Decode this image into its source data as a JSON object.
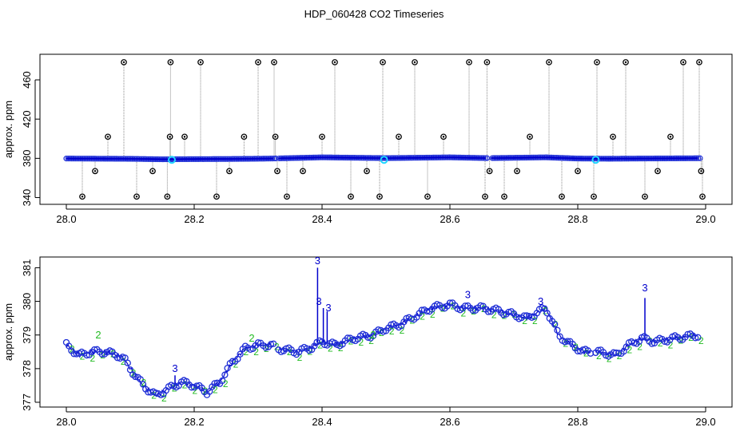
{
  "figure": {
    "title": "HDP_060428  CO2 Timeseries"
  },
  "colors": {
    "line_blue": "#0000cc",
    "marker_blue": "#1f2fd6",
    "cyan": "#1fd6ff",
    "green": "#22bb22",
    "gray": "#8a8a8a",
    "black": "#000000"
  },
  "chart_data": [
    {
      "type": "line",
      "panel": "top",
      "ylabel": "approx. ppm",
      "xlabel": "",
      "xlim": [
        28.0,
        29.0
      ],
      "ylim": [
        338,
        482
      ],
      "xticks": [
        28.0,
        28.2,
        28.4,
        28.6,
        28.8,
        29.0
      ],
      "xtick_labels": [
        "28.0",
        "28.2",
        "28.4",
        "28.6",
        "28.8",
        "29.0"
      ],
      "yticks": [
        340,
        380,
        420,
        460
      ],
      "ytick_labels": [
        "340",
        "380",
        "420",
        "460"
      ],
      "grid": false,
      "gaps": [
        [
          28.328,
          28.332
        ],
        [
          28.66,
          28.664
        ]
      ],
      "baseline": {
        "x": [
          28.0,
          28.1,
          28.15,
          28.2,
          28.25,
          28.3,
          28.33,
          28.4,
          28.5,
          28.6,
          28.66,
          28.75,
          28.8,
          28.85,
          28.9,
          28.99
        ],
        "y": [
          379.8,
          379.5,
          379.0,
          379.2,
          379.3,
          379.6,
          379.9,
          381.0,
          380.2,
          381.0,
          380.2,
          381.0,
          379.8,
          379.6,
          379.8,
          380.1
        ]
      },
      "spikes": {
        "x": [
          28.025,
          28.045,
          28.065,
          28.09,
          28.11,
          28.135,
          28.158,
          28.162,
          28.163,
          28.185,
          28.21,
          28.235,
          28.255,
          28.278,
          28.3,
          28.325,
          28.327,
          28.33,
          28.345,
          28.37,
          28.4,
          28.42,
          28.445,
          28.47,
          28.49,
          28.495,
          28.52,
          28.545,
          28.565,
          28.59,
          28.63,
          28.655,
          28.658,
          28.662,
          28.685,
          28.705,
          28.725,
          28.755,
          28.775,
          28.8,
          28.825,
          28.83,
          28.855,
          28.875,
          28.905,
          28.925,
          28.945,
          28.965,
          28.99,
          28.993,
          28.995
        ],
        "y": [
          341,
          367,
          402,
          478,
          341,
          367,
          341,
          402,
          478,
          402,
          478,
          341,
          367,
          402,
          478,
          478,
          402,
          367,
          341,
          367,
          402,
          478,
          341,
          367,
          341,
          478,
          402,
          478,
          341,
          402,
          478,
          341,
          478,
          367,
          341,
          367,
          402,
          478,
          341,
          367,
          341,
          478,
          402,
          478,
          341,
          367,
          402,
          478,
          478,
          367,
          341
        ]
      },
      "highlight_points": {
        "x": [
          28.165,
          28.497,
          28.828
        ],
        "y": [
          378.5,
          378.5,
          378.5
        ]
      }
    },
    {
      "type": "line",
      "panel": "bottom",
      "ylabel": "approx. ppm",
      "xlabel": "",
      "xlim": [
        28.0,
        29.0
      ],
      "ylim": [
        377,
        381.2
      ],
      "xticks": [
        28.0,
        28.2,
        28.4,
        28.6,
        28.8,
        29.0
      ],
      "xtick_labels": [
        "28.0",
        "28.2",
        "28.4",
        "28.6",
        "28.8",
        "29.0"
      ],
      "yticks": [
        377,
        378,
        379,
        380,
        381
      ],
      "ytick_labels": [
        "377",
        "378",
        "379",
        "380",
        "381"
      ],
      "grid": false,
      "gaps": [
        [
          28.327,
          28.332
        ],
        [
          28.822,
          28.827
        ]
      ],
      "series": [
        {
          "x": [
            28.0,
            28.02,
            28.04,
            28.06,
            28.08,
            28.09,
            28.1,
            28.12,
            28.14,
            28.16,
            28.18,
            28.2,
            28.22,
            28.24,
            28.26,
            28.28,
            28.3,
            28.32,
            28.33,
            28.36,
            28.38,
            28.4,
            28.42,
            28.45,
            28.48,
            28.5,
            28.52,
            28.55,
            28.57,
            28.6,
            28.62,
            28.65,
            28.68,
            28.7,
            28.72,
            28.75,
            28.77,
            28.79,
            28.81,
            28.83,
            28.86,
            28.88,
            28.9,
            28.92,
            28.95,
            28.99
          ],
          "y": [
            378.7,
            378.4,
            378.5,
            378.5,
            378.4,
            378.3,
            378.0,
            377.5,
            377.2,
            377.4,
            377.6,
            377.5,
            377.3,
            377.6,
            378.2,
            378.6,
            378.7,
            378.7,
            378.6,
            378.5,
            378.6,
            378.8,
            378.7,
            378.9,
            379.0,
            379.2,
            379.3,
            379.6,
            379.8,
            379.9,
            379.8,
            379.8,
            379.7,
            379.6,
            379.5,
            379.8,
            379.0,
            378.7,
            378.5,
            378.5,
            378.4,
            378.7,
            378.9,
            378.8,
            378.9,
            379.0
          ]
        }
      ],
      "spikes": {
        "x": [
          28.393,
          28.402,
          28.408,
          28.905,
          28.17
        ],
        "y": [
          381.0,
          379.8,
          379.7,
          380.1,
          377.8
        ]
      },
      "labels": {
        "x": [
          28.393,
          28.41,
          28.395,
          28.628,
          28.742,
          28.905,
          28.17,
          28.05,
          28.29,
          28.48
        ],
        "y": [
          381.1,
          379.7,
          379.9,
          380.1,
          379.9,
          380.3,
          377.9,
          378.9,
          378.8,
          378.9
        ],
        "text": [
          "3",
          "3",
          "3",
          "3",
          "3",
          "3",
          "3",
          "2",
          "2",
          "2"
        ],
        "colors": [
          "blue",
          "blue",
          "blue",
          "blue",
          "blue",
          "blue",
          "blue",
          "green",
          "green",
          "green"
        ]
      }
    }
  ]
}
